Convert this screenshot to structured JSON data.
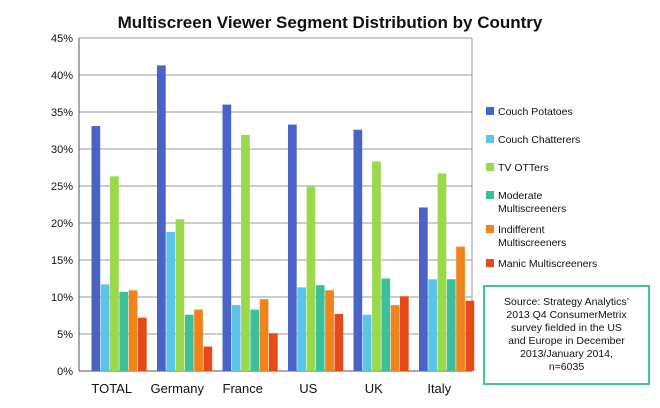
{
  "chart_data": {
    "type": "bar",
    "title": "Multiscreen Viewer Segment Distribution by Country",
    "categories": [
      "TOTAL",
      "Germany",
      "France",
      "US",
      "UK",
      "Italy"
    ],
    "y_ticks": [
      "0%",
      "5%",
      "10%",
      "15%",
      "20%",
      "25%",
      "30%",
      "35%",
      "40%",
      "45%"
    ],
    "ylim": [
      0,
      45
    ],
    "grid": true,
    "legend_position": "right",
    "series": [
      {
        "name": "Couch Potatoes",
        "color": "#4a63c6",
        "values": [
          33.1,
          41.3,
          36.0,
          33.3,
          32.6,
          22.1
        ]
      },
      {
        "name": "Couch Chatterers",
        "color": "#5bc4e8",
        "values": [
          11.7,
          18.8,
          8.9,
          11.3,
          7.6,
          12.4
        ]
      },
      {
        "name": "TV OTTers",
        "color": "#9bd94c",
        "values": [
          26.3,
          20.5,
          31.9,
          24.9,
          28.3,
          26.7
        ]
      },
      {
        "name": "Moderate Multiscreeners",
        "color": "#3dbf9c",
        "values": [
          10.7,
          7.6,
          8.3,
          11.6,
          12.5,
          12.4
        ]
      },
      {
        "name": "Indifferent Multiscreeners",
        "color": "#f0831e",
        "values": [
          10.9,
          8.3,
          9.7,
          10.9,
          8.9,
          16.8
        ]
      },
      {
        "name": "Manic Multiscreeners",
        "color": "#e64a19",
        "values": [
          7.2,
          3.3,
          5.1,
          7.7,
          10.1,
          9.5
        ]
      }
    ],
    "annotation": "Source: Strategy Analytics’\n2013 Q4 ConsumerMetrix\nsurvey fielded in the US\nand Europe in December\n2013/January 2014,\nn=6035"
  }
}
